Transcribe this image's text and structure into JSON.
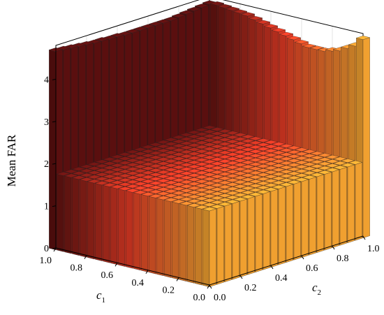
{
  "chart_data": {
    "type": "bar3d",
    "zlabel": "Mean FAR",
    "xlabel": {
      "base": "c",
      "sub": "1"
    },
    "ylabel": {
      "base": "c",
      "sub": "2"
    },
    "x_ticks": [
      "0.0",
      "0.2",
      "0.4",
      "0.6",
      "0.8",
      "1.0"
    ],
    "y_ticks": [
      "0.0",
      "0.2",
      "0.4",
      "0.6",
      "0.8",
      "1.0"
    ],
    "z_ticks": [
      "0",
      "1",
      "2",
      "3",
      "4"
    ],
    "zlim": [
      0,
      4.8
    ],
    "grid": {
      "c1": [
        0.0,
        0.05,
        0.1,
        0.15,
        0.2,
        0.25,
        0.3,
        0.35,
        0.4,
        0.45,
        0.5,
        0.55,
        0.6,
        0.65,
        0.7,
        0.75,
        0.8,
        0.85,
        0.9,
        0.95,
        1.0
      ],
      "c2": [
        0.0,
        0.05,
        0.1,
        0.15,
        0.2,
        0.25,
        0.3,
        0.35,
        0.4,
        0.45,
        0.5,
        0.55,
        0.6,
        0.65,
        0.7,
        0.75,
        0.8,
        0.85,
        0.9,
        0.95,
        1.0
      ]
    },
    "bulk_value": 1.8,
    "edge_c1_max_values": [
      4.7,
      4.68,
      4.66,
      4.64,
      4.62,
      4.6,
      4.6,
      4.58,
      4.58,
      4.56,
      4.56,
      4.56,
      4.56,
      4.56,
      4.56,
      4.56,
      4.58,
      4.6,
      4.62,
      4.64,
      4.66
    ],
    "edge_c2_max_values": [
      4.7,
      4.5,
      4.4,
      4.3,
      4.25,
      4.2,
      4.2,
      4.2,
      4.25,
      4.3,
      4.35,
      4.4,
      4.45,
      4.5,
      4.55,
      4.6,
      4.62,
      4.64,
      4.66,
      4.68,
      4.66
    ],
    "colors": {
      "c1_high": "#5a0f0f",
      "c1_mid": "#e43b25",
      "c1_low": "#f0a030"
    }
  }
}
